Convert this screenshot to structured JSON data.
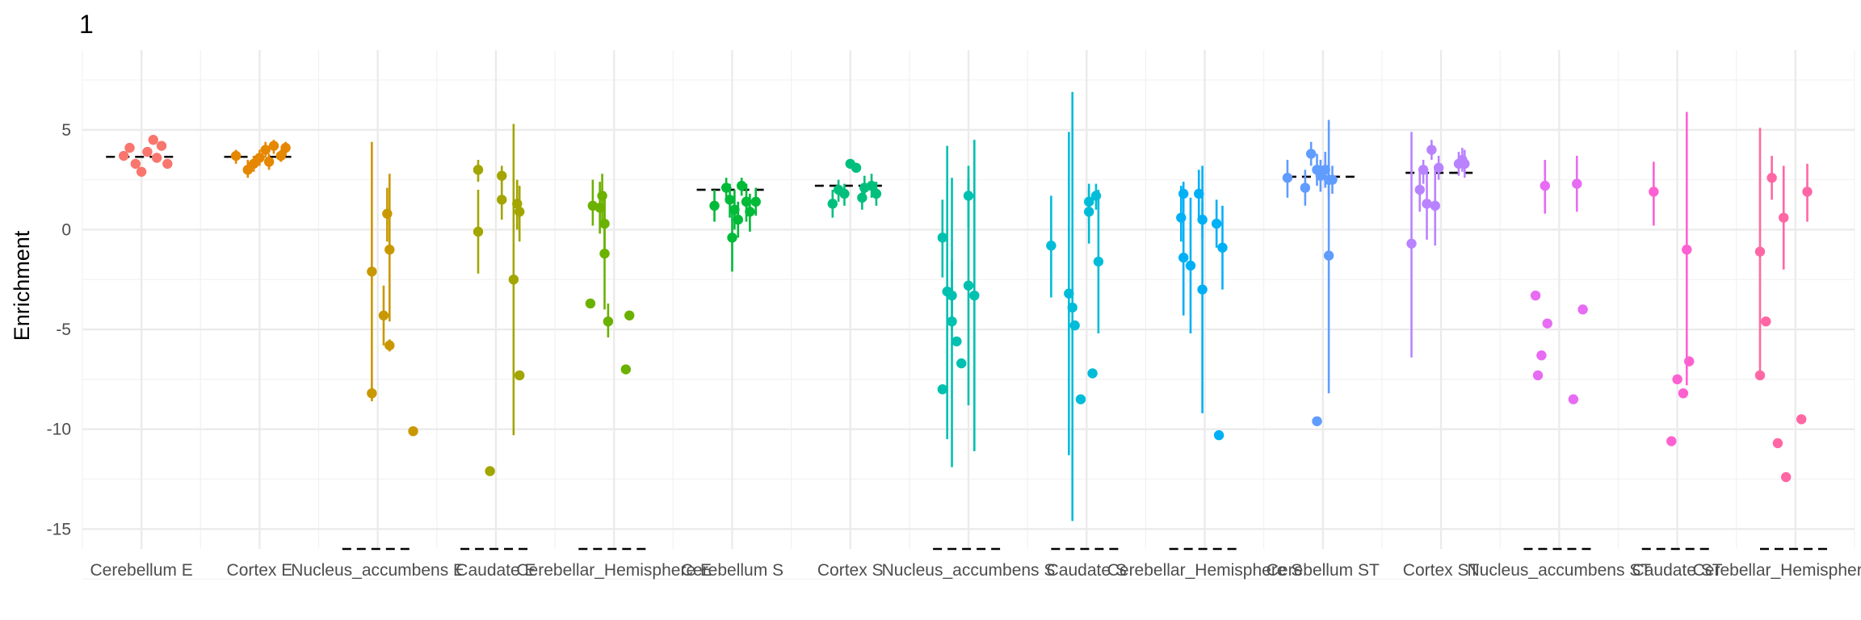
{
  "chart_data": {
    "type": "scatter",
    "title": "1",
    "xlabel": "",
    "ylabel": "Enrichment",
    "ylim": [
      -16.0,
      9.0
    ],
    "yticks": [
      5,
      0,
      -5,
      -10,
      -15
    ],
    "grid": true,
    "legend": "none",
    "categories": [
      "Cerebellum E",
      "Cortex E",
      "Nucleus_accumbens E",
      "Caudate E",
      "Cerebellar_Hemisphere E",
      "Cerebellum S",
      "Cortex S",
      "Nucleus_accumbens S",
      "Caudate S",
      "Cerebellar_Hemisphere S",
      "Cerebellum ST",
      "Cortex ST",
      "Nucleus_accumbens ST",
      "Caudate ST",
      "Cerebellar_Hemisphere ST"
    ],
    "colors": [
      "#F8766D",
      "#E58700",
      "#C99800",
      "#A3A500",
      "#6BB100",
      "#00BA38",
      "#00BF7D",
      "#00C0AF",
      "#00BCD8",
      "#00B0F6",
      "#619CFF",
      "#B983FF",
      "#E76BF3",
      "#FD61D1",
      "#FF67A4"
    ],
    "mean_lines": [
      3.65,
      3.65,
      -16.0,
      -16.0,
      -16.0,
      2.0,
      2.2,
      -16.0,
      -16.0,
      -16.0,
      2.65,
      2.85,
      -16.0,
      -16.0,
      -16.0
    ],
    "series": [
      {
        "category": "Cerebellum E",
        "points": [
          {
            "x": -0.15,
            "y": 3.7,
            "lo": 3.7,
            "hi": 3.7
          },
          {
            "x": -0.1,
            "y": 4.1,
            "lo": 4.1,
            "hi": 4.1
          },
          {
            "x": -0.05,
            "y": 3.3,
            "lo": 3.3,
            "hi": 3.3
          },
          {
            "x": 0.0,
            "y": 2.9,
            "lo": 2.9,
            "hi": 2.9
          },
          {
            "x": 0.05,
            "y": 3.9,
            "lo": 3.9,
            "hi": 3.9
          },
          {
            "x": 0.1,
            "y": 4.5,
            "lo": 4.5,
            "hi": 4.5
          },
          {
            "x": 0.13,
            "y": 3.6,
            "lo": 3.6,
            "hi": 3.6
          },
          {
            "x": 0.17,
            "y": 4.2,
            "lo": 4.2,
            "hi": 4.2
          },
          {
            "x": 0.22,
            "y": 3.3,
            "lo": 3.3,
            "hi": 3.3
          }
        ]
      },
      {
        "category": "Cortex E",
        "points": [
          {
            "x": -0.2,
            "y": 3.7,
            "lo": 3.3,
            "hi": 4.0
          },
          {
            "x": -0.1,
            "y": 3.0,
            "lo": 2.6,
            "hi": 3.5
          },
          {
            "x": -0.05,
            "y": 3.3,
            "lo": 2.9,
            "hi": 3.7
          },
          {
            "x": 0.0,
            "y": 3.6,
            "lo": 3.2,
            "hi": 4.0
          },
          {
            "x": 0.05,
            "y": 4.0,
            "lo": 3.6,
            "hi": 4.4
          },
          {
            "x": 0.08,
            "y": 3.4,
            "lo": 3.0,
            "hi": 3.8
          },
          {
            "x": 0.12,
            "y": 4.2,
            "lo": 3.8,
            "hi": 4.5
          },
          {
            "x": 0.18,
            "y": 3.7,
            "lo": 3.4,
            "hi": 4.0
          },
          {
            "x": 0.22,
            "y": 4.1,
            "lo": 3.7,
            "hi": 4.4
          }
        ]
      },
      {
        "category": "Nucleus_accumbens E",
        "points": [
          {
            "x": -0.05,
            "y": -2.1,
            "lo": -8.6,
            "hi": 4.4
          },
          {
            "x": -0.05,
            "y": -8.2,
            "lo": -8.5,
            "hi": -7.9
          },
          {
            "x": 0.05,
            "y": -4.3,
            "lo": -5.8,
            "hi": -2.8
          },
          {
            "x": 0.08,
            "y": 0.8,
            "lo": -0.6,
            "hi": 2.1
          },
          {
            "x": 0.1,
            "y": -1.0,
            "lo": -4.6,
            "hi": 2.8
          },
          {
            "x": 0.1,
            "y": -5.8,
            "lo": -6.1,
            "hi": -5.5
          },
          {
            "x": 0.3,
            "y": -10.1,
            "lo": -10.1,
            "hi": -10.1
          }
        ]
      },
      {
        "category": "Caudate E",
        "points": [
          {
            "x": -0.15,
            "y": 3.0,
            "lo": 2.4,
            "hi": 3.5
          },
          {
            "x": -0.15,
            "y": -0.1,
            "lo": -2.2,
            "hi": 2.0
          },
          {
            "x": -0.05,
            "y": -12.1,
            "lo": -12.1,
            "hi": -12.1
          },
          {
            "x": 0.05,
            "y": 2.7,
            "lo": 2.0,
            "hi": 3.2
          },
          {
            "x": 0.05,
            "y": 1.5,
            "lo": 0.5,
            "hi": 2.5
          },
          {
            "x": 0.15,
            "y": -2.5,
            "lo": -10.3,
            "hi": 5.3
          },
          {
            "x": 0.18,
            "y": 1.3,
            "lo": 0.0,
            "hi": 2.5
          },
          {
            "x": 0.2,
            "y": 0.9,
            "lo": -0.6,
            "hi": 2.2
          },
          {
            "x": 0.2,
            "y": -7.3,
            "lo": -7.3,
            "hi": -7.3
          }
        ]
      },
      {
        "category": "Cerebellar_Hemisphere E",
        "points": [
          {
            "x": -0.2,
            "y": -3.7,
            "lo": -3.7,
            "hi": -3.7
          },
          {
            "x": -0.18,
            "y": 1.2,
            "lo": 0.2,
            "hi": 2.5
          },
          {
            "x": -0.12,
            "y": 1.1,
            "lo": -0.2,
            "hi": 2.4
          },
          {
            "x": -0.1,
            "y": 1.7,
            "lo": 0.3,
            "hi": 2.8
          },
          {
            "x": -0.08,
            "y": 0.3,
            "lo": -1.3,
            "hi": 1.8
          },
          {
            "x": -0.08,
            "y": -1.2,
            "lo": -4.0,
            "hi": 1.9
          },
          {
            "x": -0.05,
            "y": -4.6,
            "lo": -5.4,
            "hi": -3.7
          },
          {
            "x": 0.1,
            "y": -7.0,
            "lo": -7.0,
            "hi": -7.0
          },
          {
            "x": 0.13,
            "y": -4.3,
            "lo": -4.3,
            "hi": -4.3
          }
        ]
      },
      {
        "category": "Cerebellum S",
        "points": [
          {
            "x": -0.15,
            "y": 1.2,
            "lo": 0.4,
            "hi": 2.0
          },
          {
            "x": -0.05,
            "y": 2.1,
            "lo": 1.5,
            "hi": 2.6
          },
          {
            "x": -0.02,
            "y": 1.5,
            "lo": 0.6,
            "hi": 2.3
          },
          {
            "x": 0.0,
            "y": -0.4,
            "lo": -2.1,
            "hi": 1.2
          },
          {
            "x": 0.02,
            "y": 1.0,
            "lo": 0.0,
            "hi": 2.0
          },
          {
            "x": 0.05,
            "y": 0.5,
            "lo": -0.4,
            "hi": 1.4
          },
          {
            "x": 0.08,
            "y": 2.2,
            "lo": 1.7,
            "hi": 2.6
          },
          {
            "x": 0.12,
            "y": 1.4,
            "lo": 0.4,
            "hi": 2.3
          },
          {
            "x": 0.15,
            "y": 0.9,
            "lo": -0.1,
            "hi": 1.8
          },
          {
            "x": 0.2,
            "y": 1.4,
            "lo": 0.7,
            "hi": 2.1
          }
        ]
      },
      {
        "category": "Cortex S",
        "points": [
          {
            "x": -0.15,
            "y": 1.3,
            "lo": 0.6,
            "hi": 2.0
          },
          {
            "x": -0.1,
            "y": 2.0,
            "lo": 1.4,
            "hi": 2.5
          },
          {
            "x": -0.05,
            "y": 1.8,
            "lo": 1.2,
            "hi": 2.3
          },
          {
            "x": 0.0,
            "y": 3.3,
            "lo": 3.1,
            "hi": 3.5
          },
          {
            "x": 0.05,
            "y": 3.1,
            "lo": 2.9,
            "hi": 3.3
          },
          {
            "x": 0.1,
            "y": 1.6,
            "lo": 1.0,
            "hi": 2.3
          },
          {
            "x": 0.12,
            "y": 2.1,
            "lo": 1.5,
            "hi": 2.7
          },
          {
            "x": 0.18,
            "y": 2.2,
            "lo": 1.6,
            "hi": 2.8
          },
          {
            "x": 0.22,
            "y": 1.8,
            "lo": 1.2,
            "hi": 2.4
          }
        ]
      },
      {
        "category": "Nucleus_accumbens S",
        "points": [
          {
            "x": -0.22,
            "y": -0.4,
            "lo": -2.4,
            "hi": 1.5
          },
          {
            "x": -0.22,
            "y": -8.0,
            "lo": -8.0,
            "hi": -8.0
          },
          {
            "x": -0.18,
            "y": -3.1,
            "lo": -10.5,
            "hi": 4.2
          },
          {
            "x": -0.14,
            "y": -4.6,
            "lo": -11.9,
            "hi": 2.6
          },
          {
            "x": -0.14,
            "y": -3.3,
            "lo": -5.0,
            "hi": -1.5
          },
          {
            "x": -0.1,
            "y": -5.6,
            "lo": -5.6,
            "hi": -5.6
          },
          {
            "x": -0.06,
            "y": -6.7,
            "lo": -6.7,
            "hi": -6.7
          },
          {
            "x": 0.0,
            "y": -2.8,
            "lo": -8.8,
            "hi": 3.2
          },
          {
            "x": 0.0,
            "y": 1.7,
            "lo": 0.1,
            "hi": 2.6
          },
          {
            "x": 0.05,
            "y": -3.3,
            "lo": -11.1,
            "hi": 4.5
          }
        ]
      },
      {
        "category": "Caudate S",
        "points": [
          {
            "x": -0.3,
            "y": -0.8,
            "lo": -3.4,
            "hi": 1.7
          },
          {
            "x": -0.15,
            "y": -3.2,
            "lo": -11.3,
            "hi": 4.9
          },
          {
            "x": -0.12,
            "y": -3.9,
            "lo": -14.6,
            "hi": 6.9
          },
          {
            "x": -0.1,
            "y": -4.8,
            "lo": -4.8,
            "hi": -4.8
          },
          {
            "x": -0.05,
            "y": -8.5,
            "lo": -8.5,
            "hi": -8.5
          },
          {
            "x": 0.02,
            "y": 1.4,
            "lo": 0.3,
            "hi": 2.1
          },
          {
            "x": 0.02,
            "y": 0.9,
            "lo": -0.7,
            "hi": 2.3
          },
          {
            "x": 0.05,
            "y": -7.2,
            "lo": -7.2,
            "hi": -7.2
          },
          {
            "x": 0.08,
            "y": 1.7,
            "lo": 1.0,
            "hi": 2.3
          },
          {
            "x": 0.1,
            "y": -1.6,
            "lo": -5.2,
            "hi": 2.0
          }
        ]
      },
      {
        "category": "Cerebellar_Hemisphere S",
        "points": [
          {
            "x": -0.2,
            "y": 0.6,
            "lo": -0.6,
            "hi": 2.2
          },
          {
            "x": -0.18,
            "y": 1.8,
            "lo": 1.1,
            "hi": 2.4
          },
          {
            "x": -0.18,
            "y": -1.4,
            "lo": -4.3,
            "hi": 1.6
          },
          {
            "x": -0.12,
            "y": -1.8,
            "lo": -5.2,
            "hi": 1.6
          },
          {
            "x": -0.05,
            "y": 1.8,
            "lo": 0.6,
            "hi": 3.0
          },
          {
            "x": -0.02,
            "y": 0.5,
            "lo": -0.4,
            "hi": 1.4
          },
          {
            "x": -0.02,
            "y": -3.0,
            "lo": -9.2,
            "hi": 3.2
          },
          {
            "x": 0.1,
            "y": 0.3,
            "lo": -0.9,
            "hi": 1.5
          },
          {
            "x": 0.15,
            "y": -0.9,
            "lo": -3.0,
            "hi": 1.2
          },
          {
            "x": 0.12,
            "y": -10.3,
            "lo": -10.3,
            "hi": -10.3
          }
        ]
      },
      {
        "category": "Cerebellum ST",
        "points": [
          {
            "x": -0.3,
            "y": 2.6,
            "lo": 1.6,
            "hi": 3.5
          },
          {
            "x": -0.15,
            "y": 2.1,
            "lo": 1.2,
            "hi": 3.0
          },
          {
            "x": -0.1,
            "y": 3.8,
            "lo": 3.2,
            "hi": 4.4
          },
          {
            "x": -0.05,
            "y": 3.0,
            "lo": 2.2,
            "hi": 3.8
          },
          {
            "x": -0.02,
            "y": 2.7,
            "lo": 1.9,
            "hi": 3.5
          },
          {
            "x": -0.05,
            "y": -9.6,
            "lo": -9.6,
            "hi": -9.6
          },
          {
            "x": 0.02,
            "y": 3.0,
            "lo": 2.1,
            "hi": 3.9
          },
          {
            "x": 0.05,
            "y": 2.5,
            "lo": 1.6,
            "hi": 3.4
          },
          {
            "x": 0.05,
            "y": -1.3,
            "lo": -8.2,
            "hi": 5.5
          },
          {
            "x": 0.08,
            "y": 2.5,
            "lo": 1.8,
            "hi": 3.2
          }
        ]
      },
      {
        "category": "Cortex ST",
        "points": [
          {
            "x": -0.25,
            "y": -0.7,
            "lo": -6.4,
            "hi": 4.9
          },
          {
            "x": -0.18,
            "y": 2.0,
            "lo": 0.9,
            "hi": 3.0
          },
          {
            "x": -0.15,
            "y": 3.0,
            "lo": 2.3,
            "hi": 3.5
          },
          {
            "x": -0.12,
            "y": 1.3,
            "lo": -0.5,
            "hi": 3.0
          },
          {
            "x": -0.08,
            "y": 4.0,
            "lo": 3.5,
            "hi": 4.5
          },
          {
            "x": -0.05,
            "y": 1.2,
            "lo": -0.8,
            "hi": 3.2
          },
          {
            "x": -0.02,
            "y": 3.1,
            "lo": 2.5,
            "hi": 3.7
          },
          {
            "x": 0.15,
            "y": 3.3,
            "lo": 2.7,
            "hi": 3.9
          },
          {
            "x": 0.18,
            "y": 3.5,
            "lo": 2.9,
            "hi": 4.1
          },
          {
            "x": 0.2,
            "y": 3.3,
            "lo": 2.6,
            "hi": 4.0
          }
        ]
      },
      {
        "category": "Nucleus_accumbens ST",
        "points": [
          {
            "x": -0.2,
            "y": -3.3,
            "lo": -3.3,
            "hi": -3.3
          },
          {
            "x": -0.18,
            "y": -7.3,
            "lo": -7.3,
            "hi": -7.3
          },
          {
            "x": -0.15,
            "y": -6.3,
            "lo": -6.3,
            "hi": -6.3
          },
          {
            "x": -0.12,
            "y": 2.2,
            "lo": 0.8,
            "hi": 3.5
          },
          {
            "x": -0.1,
            "y": -4.7,
            "lo": -4.7,
            "hi": -4.7
          },
          {
            "x": 0.12,
            "y": -8.5,
            "lo": -8.5,
            "hi": -8.5
          },
          {
            "x": 0.15,
            "y": 2.3,
            "lo": 0.9,
            "hi": 3.7
          },
          {
            "x": 0.2,
            "y": -4.0,
            "lo": -4.0,
            "hi": -4.0
          }
        ]
      },
      {
        "category": "Caudate ST",
        "points": [
          {
            "x": -0.2,
            "y": 1.9,
            "lo": 0.2,
            "hi": 3.4
          },
          {
            "x": -0.05,
            "y": -10.6,
            "lo": -10.6,
            "hi": -10.6
          },
          {
            "x": 0.0,
            "y": -7.5,
            "lo": -7.5,
            "hi": -7.5
          },
          {
            "x": 0.05,
            "y": -8.2,
            "lo": -8.2,
            "hi": -8.2
          },
          {
            "x": 0.08,
            "y": -1.0,
            "lo": -7.8,
            "hi": 5.9
          },
          {
            "x": 0.1,
            "y": -6.6,
            "lo": -6.6,
            "hi": -6.6
          }
        ]
      },
      {
        "category": "Cerebellar_Hemisphere ST",
        "points": [
          {
            "x": -0.3,
            "y": -1.1,
            "lo": -7.2,
            "hi": 5.1
          },
          {
            "x": -0.3,
            "y": -7.3,
            "lo": -7.3,
            "hi": -7.3
          },
          {
            "x": -0.25,
            "y": -4.6,
            "lo": -4.6,
            "hi": -4.6
          },
          {
            "x": -0.2,
            "y": 2.6,
            "lo": 1.5,
            "hi": 3.7
          },
          {
            "x": -0.15,
            "y": -10.7,
            "lo": -10.7,
            "hi": -10.7
          },
          {
            "x": -0.1,
            "y": 0.6,
            "lo": -2.0,
            "hi": 3.2
          },
          {
            "x": -0.08,
            "y": -12.4,
            "lo": -12.4,
            "hi": -12.4
          },
          {
            "x": 0.05,
            "y": -9.5,
            "lo": -9.5,
            "hi": -9.5
          },
          {
            "x": 0.1,
            "y": 1.9,
            "lo": 0.4,
            "hi": 3.3
          }
        ]
      }
    ]
  }
}
